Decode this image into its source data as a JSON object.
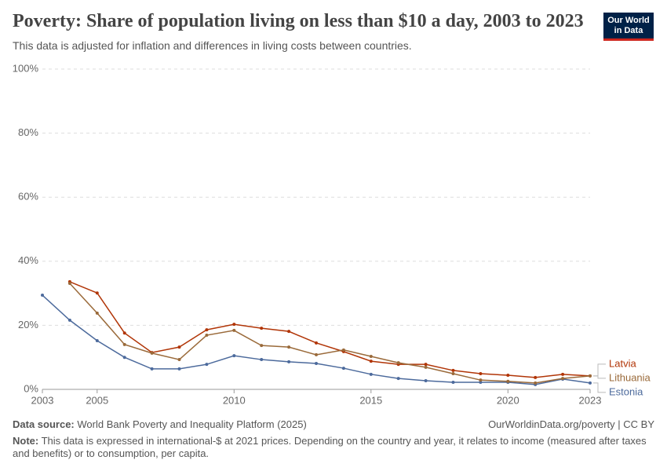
{
  "logo": [
    "Our World",
    "in Data"
  ],
  "footer": {
    "source_label": "Data source:",
    "source": "World Bank Poverty and Inequality Platform (2025)",
    "link": "OurWorldinData.org/poverty | CC BY",
    "note_label": "Note:",
    "note": "This data is expressed in international-$ at 2021 prices. Depending on the country and year, it relates to income (measured after taxes and benefits) or to consumption, per capita."
  },
  "chart_data": {
    "type": "line",
    "title": "Poverty: Share of population living on less than $10 a day, 2003 to 2023",
    "subtitle": "This data is adjusted for inflation and differences in living costs between countries.",
    "x": [
      2003,
      2004,
      2005,
      2006,
      2007,
      2008,
      2009,
      2010,
      2011,
      2012,
      2013,
      2014,
      2015,
      2016,
      2017,
      2018,
      2019,
      2020,
      2021,
      2022,
      2023
    ],
    "xlim": [
      2003,
      2023
    ],
    "xticks": [
      2003,
      2005,
      2010,
      2015,
      2020,
      2023
    ],
    "ylim": [
      0,
      100
    ],
    "yticks": [
      {
        "value": 0,
        "label": "0%"
      },
      {
        "value": 20,
        "label": "20%"
      },
      {
        "value": 40,
        "label": "40%"
      },
      {
        "value": 60,
        "label": "60%"
      },
      {
        "value": 80,
        "label": "80%"
      },
      {
        "value": 100,
        "label": "100%"
      }
    ],
    "grid": true,
    "series": [
      {
        "name": "Estonia",
        "color": "#4c6a9c",
        "values": [
          29.4,
          21.6,
          15.2,
          10.0,
          6.4,
          6.4,
          7.8,
          10.5,
          9.3,
          8.6,
          8.1,
          6.6,
          4.7,
          3.4,
          2.7,
          2.2,
          2.2,
          2.2,
          1.5,
          3.2,
          2.0
        ]
      },
      {
        "name": "Latvia",
        "color": "#b13507",
        "values": [
          null,
          33.6,
          30.1,
          17.6,
          11.5,
          13.2,
          18.6,
          20.3,
          19.1,
          18.1,
          14.5,
          11.8,
          8.8,
          7.8,
          7.8,
          5.9,
          4.9,
          4.4,
          3.7,
          4.7,
          4.2
        ]
      },
      {
        "name": "Lithuania",
        "color": "#9a6a3a",
        "values": [
          null,
          33.1,
          23.8,
          14.0,
          11.3,
          9.3,
          16.9,
          18.4,
          13.7,
          13.2,
          10.8,
          12.3,
          10.3,
          8.3,
          6.9,
          4.9,
          2.9,
          2.5,
          2.0,
          3.4,
          4.2
        ]
      }
    ]
  }
}
